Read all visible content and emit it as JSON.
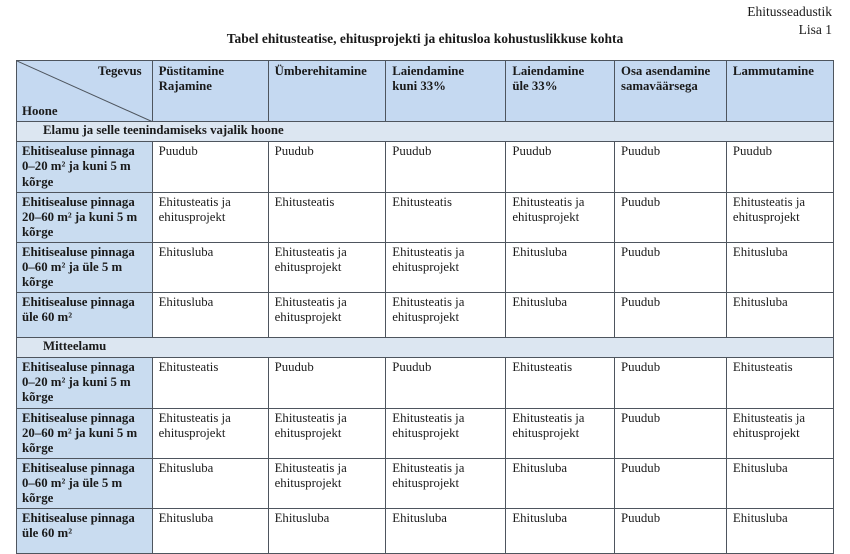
{
  "page": {
    "corner_line1": "Ehitusseadustik",
    "corner_line2": "Lisa 1",
    "title": "Tabel ehitusteatise, ehitusprojekti ja ehitusloa kohustuslikkuse kohta"
  },
  "table": {
    "corner": {
      "top_right": "Tegevus",
      "bottom_left": "Hoone"
    },
    "columns": [
      "Püstitamine\nRajamine",
      "Ümberehitamine",
      "Laiendamine\nkuni 33%",
      "Laiendamine\nüle 33%",
      "Osa asendamine\nsamaväärsega",
      "Lammutamine"
    ],
    "sections": [
      {
        "title": "Elamu ja selle teenindamiseks vajalik hoone",
        "rows": [
          {
            "label": "Ehitisealuse pinnaga 0–20 m² ja kuni 5 m kõrge",
            "cells": [
              "Puudub",
              "Puudub",
              "Puudub",
              "Puudub",
              "Puudub",
              "Puudub"
            ]
          },
          {
            "label": "Ehitisealuse pinnaga 20–60 m² ja kuni 5 m kõrge",
            "cells": [
              "Ehitusteatis ja ehitusprojekt",
              "Ehitusteatis",
              "Ehitusteatis",
              "Ehitusteatis ja ehitusprojekt",
              "Puudub",
              "Ehitusteatis ja ehitusprojekt"
            ]
          },
          {
            "label": "Ehitisealuse pinnaga 0–60 m² ja üle 5 m kõrge",
            "cells": [
              "Ehitusluba",
              "Ehitusteatis ja ehitusprojekt",
              "Ehitusteatis ja ehitusprojekt",
              "Ehitusluba",
              "Puudub",
              "Ehitusluba"
            ]
          },
          {
            "label": "Ehitisealuse pinnaga üle 60 m²",
            "cells": [
              "Ehitusluba",
              "Ehitusteatis ja ehitusprojekt",
              "Ehitusteatis ja ehitusprojekt",
              "Ehitusluba",
              "Puudub",
              "Ehitusluba"
            ]
          }
        ]
      },
      {
        "title": "Mitteelamu",
        "rows": [
          {
            "label": "Ehitisealuse pinnaga 0–20 m² ja kuni 5 m kõrge",
            "cells": [
              "Ehitusteatis",
              "Puudub",
              "Puudub",
              "Ehitusteatis",
              "Puudub",
              "Ehitusteatis"
            ]
          },
          {
            "label": "Ehitisealuse pinnaga 20–60 m² ja kuni 5 m kõrge",
            "cells": [
              "Ehitusteatis ja ehitusprojekt",
              "Ehitusteatis ja ehitusprojekt",
              "Ehitusteatis ja ehitusprojekt",
              "Ehitusteatis ja ehitusprojekt",
              "Puudub",
              "Ehitusteatis ja ehitusprojekt"
            ]
          },
          {
            "label": "Ehitisealuse pinnaga 0–60 m² ja üle 5 m kõrge",
            "cells": [
              "Ehitusluba",
              "Ehitusteatis ja ehitusprojekt",
              "Ehitusteatis ja ehitusprojekt",
              "Ehitusluba",
              "Puudub",
              "Ehitusluba"
            ]
          },
          {
            "label": "Ehitisealuse pinnaga üle 60 m²",
            "cells": [
              "Ehitusluba",
              "Ehitusluba",
              "Ehitusluba",
              "Ehitusluba",
              "Puudub",
              "Ehitusluba"
            ]
          }
        ]
      }
    ],
    "colors": {
      "header_bg": "#c5d9f1",
      "label_bg": "#c9dcf0",
      "section_bg": "#dce6f1",
      "border": "#4e555e"
    }
  }
}
